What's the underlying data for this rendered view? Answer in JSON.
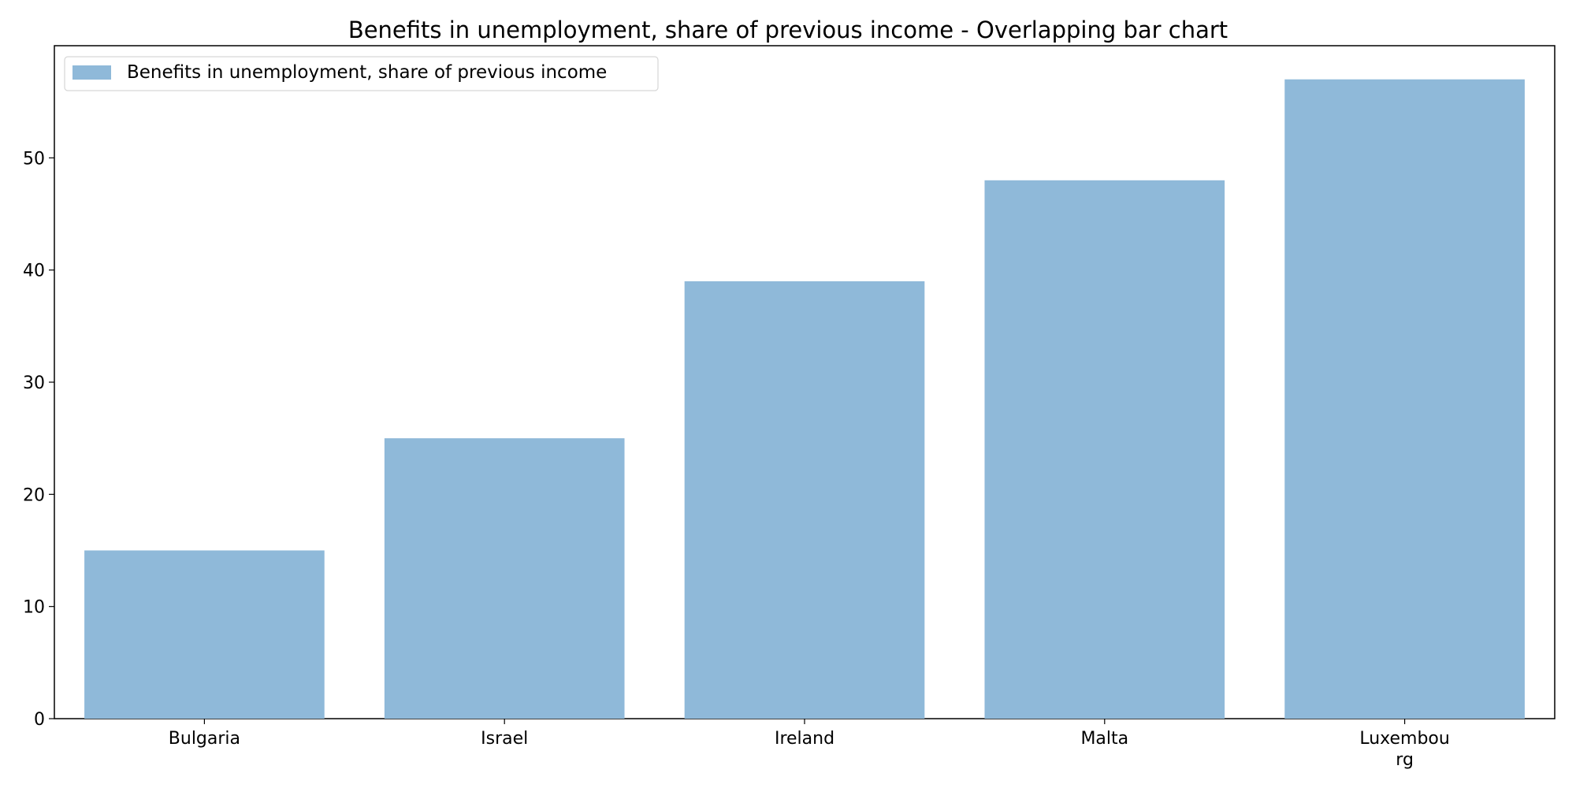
{
  "chart_data": {
    "type": "bar",
    "title": "Benefits in unemployment, share of previous income - Overlapping bar chart",
    "xlabel": "",
    "ylabel": "",
    "categories": [
      [
        "Bulgaria"
      ],
      [
        "Israel"
      ],
      [
        "Ireland"
      ],
      [
        "Malta"
      ],
      [
        "Luxembou",
        "rg"
      ]
    ],
    "series": [
      {
        "name": "Benefits in unemployment, share of previous income",
        "values": [
          15,
          25,
          39,
          48,
          57
        ],
        "color": "#8fb9d9"
      }
    ],
    "ylim": [
      0,
      60
    ],
    "yticks": [
      0,
      10,
      20,
      30,
      40,
      50
    ],
    "grid": false,
    "legend_position": "top-left"
  }
}
